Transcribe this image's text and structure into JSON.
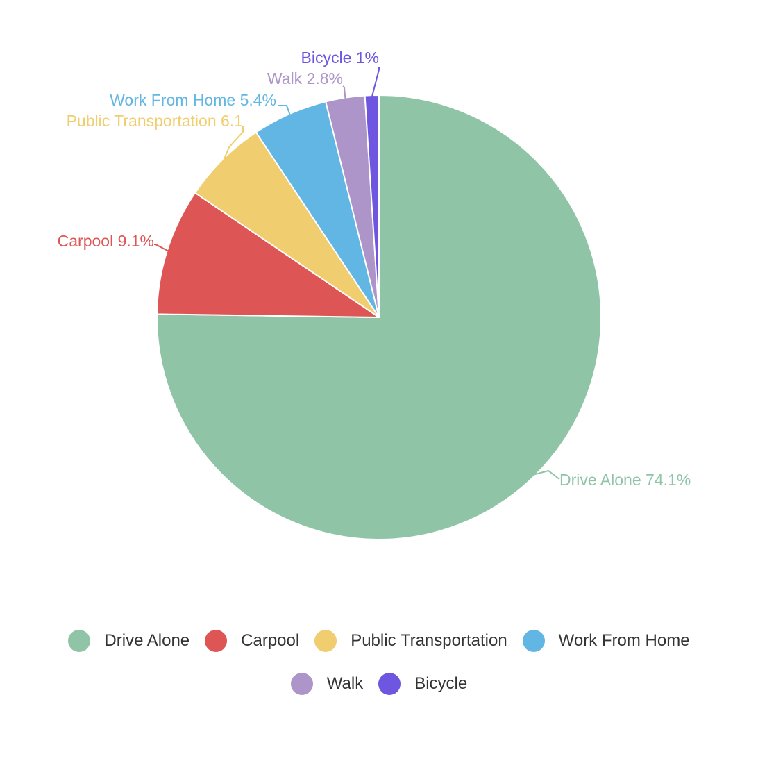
{
  "chart_data": {
    "type": "pie",
    "categories": [
      "Drive Alone",
      "Carpool",
      "Public Transportation",
      "Work From Home",
      "Walk",
      "Bicycle"
    ],
    "values": [
      74.1,
      9.1,
      6.1,
      5.4,
      2.8,
      1
    ],
    "labels": [
      "Drive Alone 74.1%",
      "Carpool 9.1%",
      "Public Transportation 6.1",
      "Work From Home 5.4%",
      "Walk 2.8%",
      "Bicycle 1%"
    ],
    "colors": [
      "#90c4a7",
      "#de5555",
      "#f0cd6e",
      "#62b6e3",
      "#ad95c9",
      "#6e56e0"
    ],
    "unit": "%",
    "legend_position": "bottom"
  },
  "legend": {
    "items": [
      {
        "label": "Drive Alone",
        "color": "#90c4a7"
      },
      {
        "label": "Carpool",
        "color": "#de5555"
      },
      {
        "label": "Public Transportation",
        "color": "#f0cd6e"
      },
      {
        "label": "Work From Home",
        "color": "#62b6e3"
      },
      {
        "label": "Walk",
        "color": "#ad95c9"
      },
      {
        "label": "Bicycle",
        "color": "#6e56e0"
      }
    ]
  }
}
